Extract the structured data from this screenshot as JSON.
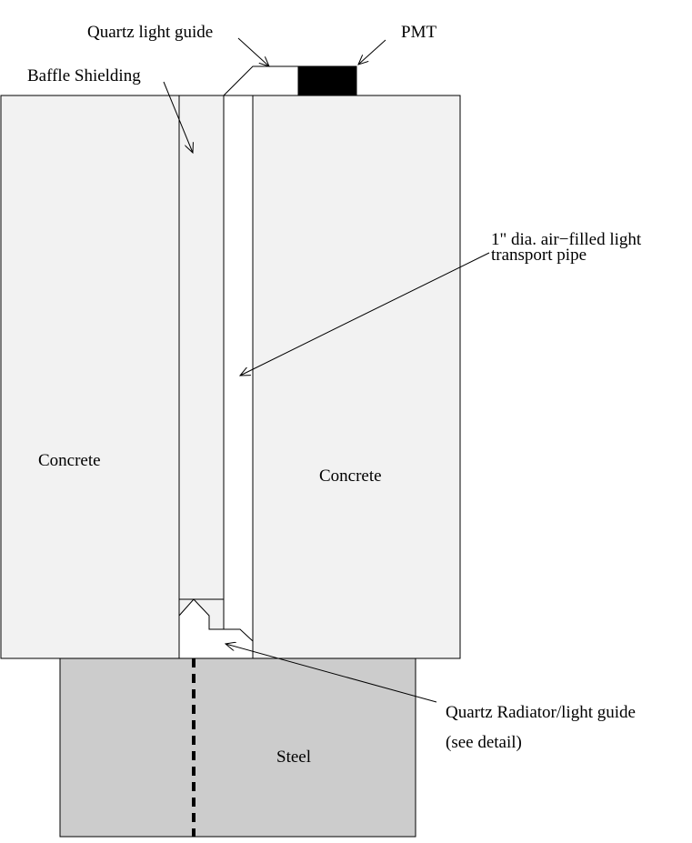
{
  "labels": {
    "quartz_light_guide": "Quartz light guide",
    "pmt": "PMT",
    "baffle_shielding": "Baffle Shielding",
    "pipe_line1": "1\" dia. air−filled light",
    "pipe_line2": "transport pipe",
    "concrete_left": "Concrete",
    "concrete_right": "Concrete",
    "steel": "Steel",
    "radiator_line1": "Quartz Radiator/light guide",
    "radiator_line2": "(see detail)"
  },
  "colors": {
    "concrete": "#f2f2f2",
    "steel": "#cccccc",
    "pmt": "#000000",
    "outline": "#000000"
  }
}
